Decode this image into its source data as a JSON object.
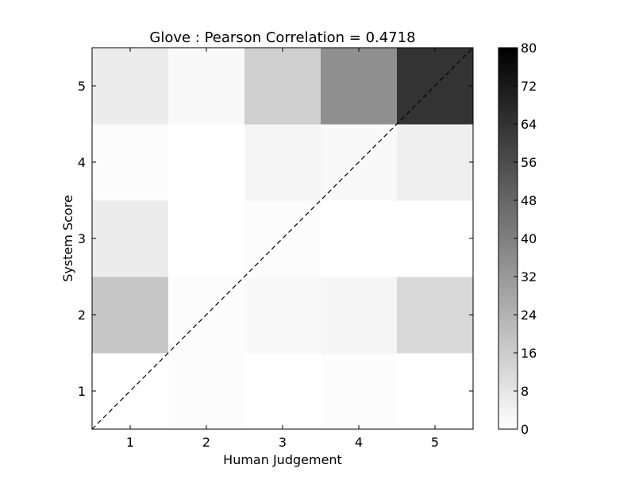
{
  "chart_data": {
    "type": "heatmap",
    "title": "Glove : Pearson Correlation = 0.4718",
    "xlabel": "Human Judgement",
    "ylabel": "System Score",
    "x_categories": [
      "1",
      "2",
      "3",
      "4",
      "5"
    ],
    "y_categories": [
      "1",
      "2",
      "3",
      "4",
      "5"
    ],
    "xlim": [
      0.5,
      5.5
    ],
    "ylim": [
      0.5,
      5.5
    ],
    "values": [
      [
        0,
        1,
        0,
        1,
        0
      ],
      [
        18,
        1,
        2,
        3,
        12
      ],
      [
        6,
        0,
        1,
        0,
        0
      ],
      [
        1,
        0,
        3,
        2,
        5
      ],
      [
        6,
        2,
        15,
        35,
        64
      ]
    ],
    "values_note_rows": "rows ordered by System Score 1..5, columns by Human Judgement 1..5",
    "colormap": "gray_r",
    "colorbar": {
      "min": 0,
      "max": 80,
      "ticks": [
        "0",
        "8",
        "16",
        "24",
        "32",
        "40",
        "48",
        "56",
        "64",
        "72",
        "80"
      ]
    },
    "reference_line": {
      "style": "dashed",
      "from": [
        0.5,
        0.5
      ],
      "to": [
        5.5,
        5.5
      ]
    },
    "grid": false
  }
}
